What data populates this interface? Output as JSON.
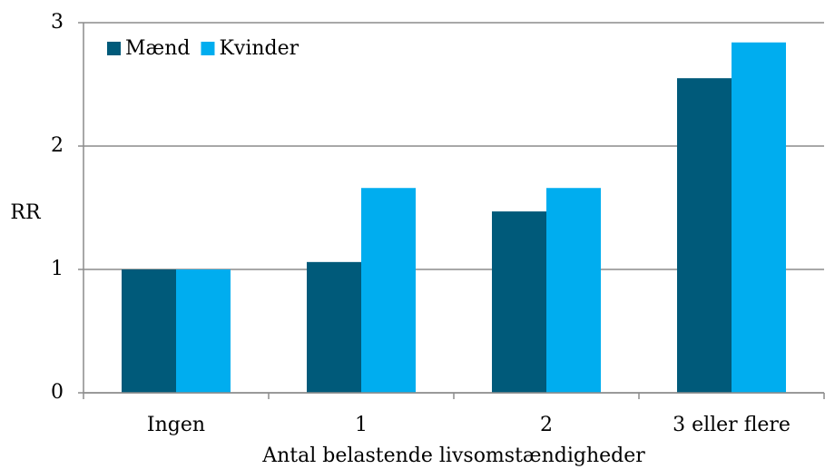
{
  "chart_data": {
    "type": "bar",
    "categories": [
      "Ingen",
      "1",
      "2",
      "3 eller flere"
    ],
    "series": [
      {
        "name": "Mænd",
        "color": "#005a7a",
        "values": [
          1.0,
          1.06,
          1.47,
          2.55
        ]
      },
      {
        "name": "Kvinder",
        "color": "#00adef",
        "values": [
          1.0,
          1.66,
          1.66,
          2.84
        ]
      }
    ],
    "ylabel": "RR",
    "xlabel": "Antal belastende livsomstændigheder",
    "ylim": [
      0,
      3
    ],
    "yticks": [
      0,
      1,
      2,
      3
    ],
    "grid": true,
    "legend": "top-left"
  }
}
